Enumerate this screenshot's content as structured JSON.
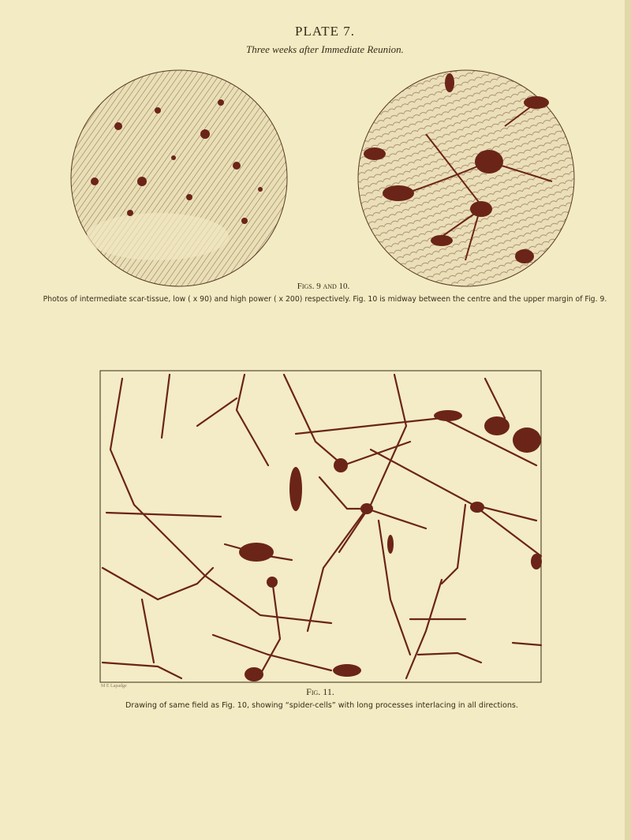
{
  "plate": {
    "title": "PLATE 7.",
    "subtitle": "Three weeks after Immediate Reunion."
  },
  "figures_top": {
    "label": "Figs. 9 and 10.",
    "caption": "Photos of intermediate scar-tissue, low ( x 90) and high power ( x 200) respectively.  Fig. 10 is midway between the centre and the upper margin of Fig. 9."
  },
  "figure_bottom": {
    "signature": "M E Lapadge",
    "label": "Fig. 11.",
    "caption": "Drawing of same field as Fig. 10, showing “spider-cells” with long processes interlacing in all directions."
  }
}
